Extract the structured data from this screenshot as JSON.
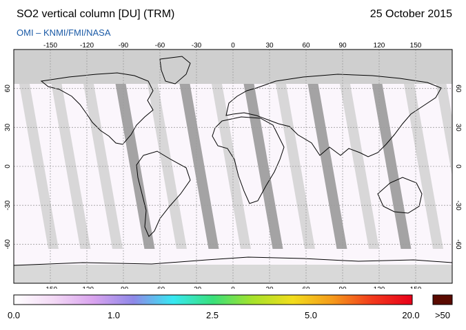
{
  "header": {
    "title": "SO2 vertical column [DU] (TRM)",
    "date": "25 October 2015",
    "credit": "OMI  –  KNMI/FMI/NASA"
  },
  "map": {
    "lon_ticks": [
      -150,
      -120,
      -90,
      -60,
      -30,
      0,
      30,
      60,
      90,
      120,
      150
    ],
    "lat_ticks": [
      60,
      30,
      0,
      -30,
      -60
    ],
    "lon_range": [
      -180,
      180
    ],
    "lat_range": [
      -90,
      90
    ],
    "grid": true,
    "colors": {
      "background": "#fbf6fc",
      "no_data": "#cfcfcf",
      "orbit_gap_dark": "#9a9a9a",
      "orbit_gap_light": "#d4d4d4",
      "coast": "#000000"
    }
  },
  "colorbar": {
    "labels": [
      "0.0",
      "1.0",
      "2.5",
      "5.0",
      "20.0",
      ">50"
    ],
    "stops": [
      "#ffffff",
      "#f3d9f5",
      "#d9a3ee",
      "#8f88e8",
      "#37e8f2",
      "#39e07a",
      "#a6e22a",
      "#f2dd1c",
      "#f59a1b",
      "#f2391c",
      "#e8001a"
    ],
    "overflow_color": "#5a0a00"
  }
}
